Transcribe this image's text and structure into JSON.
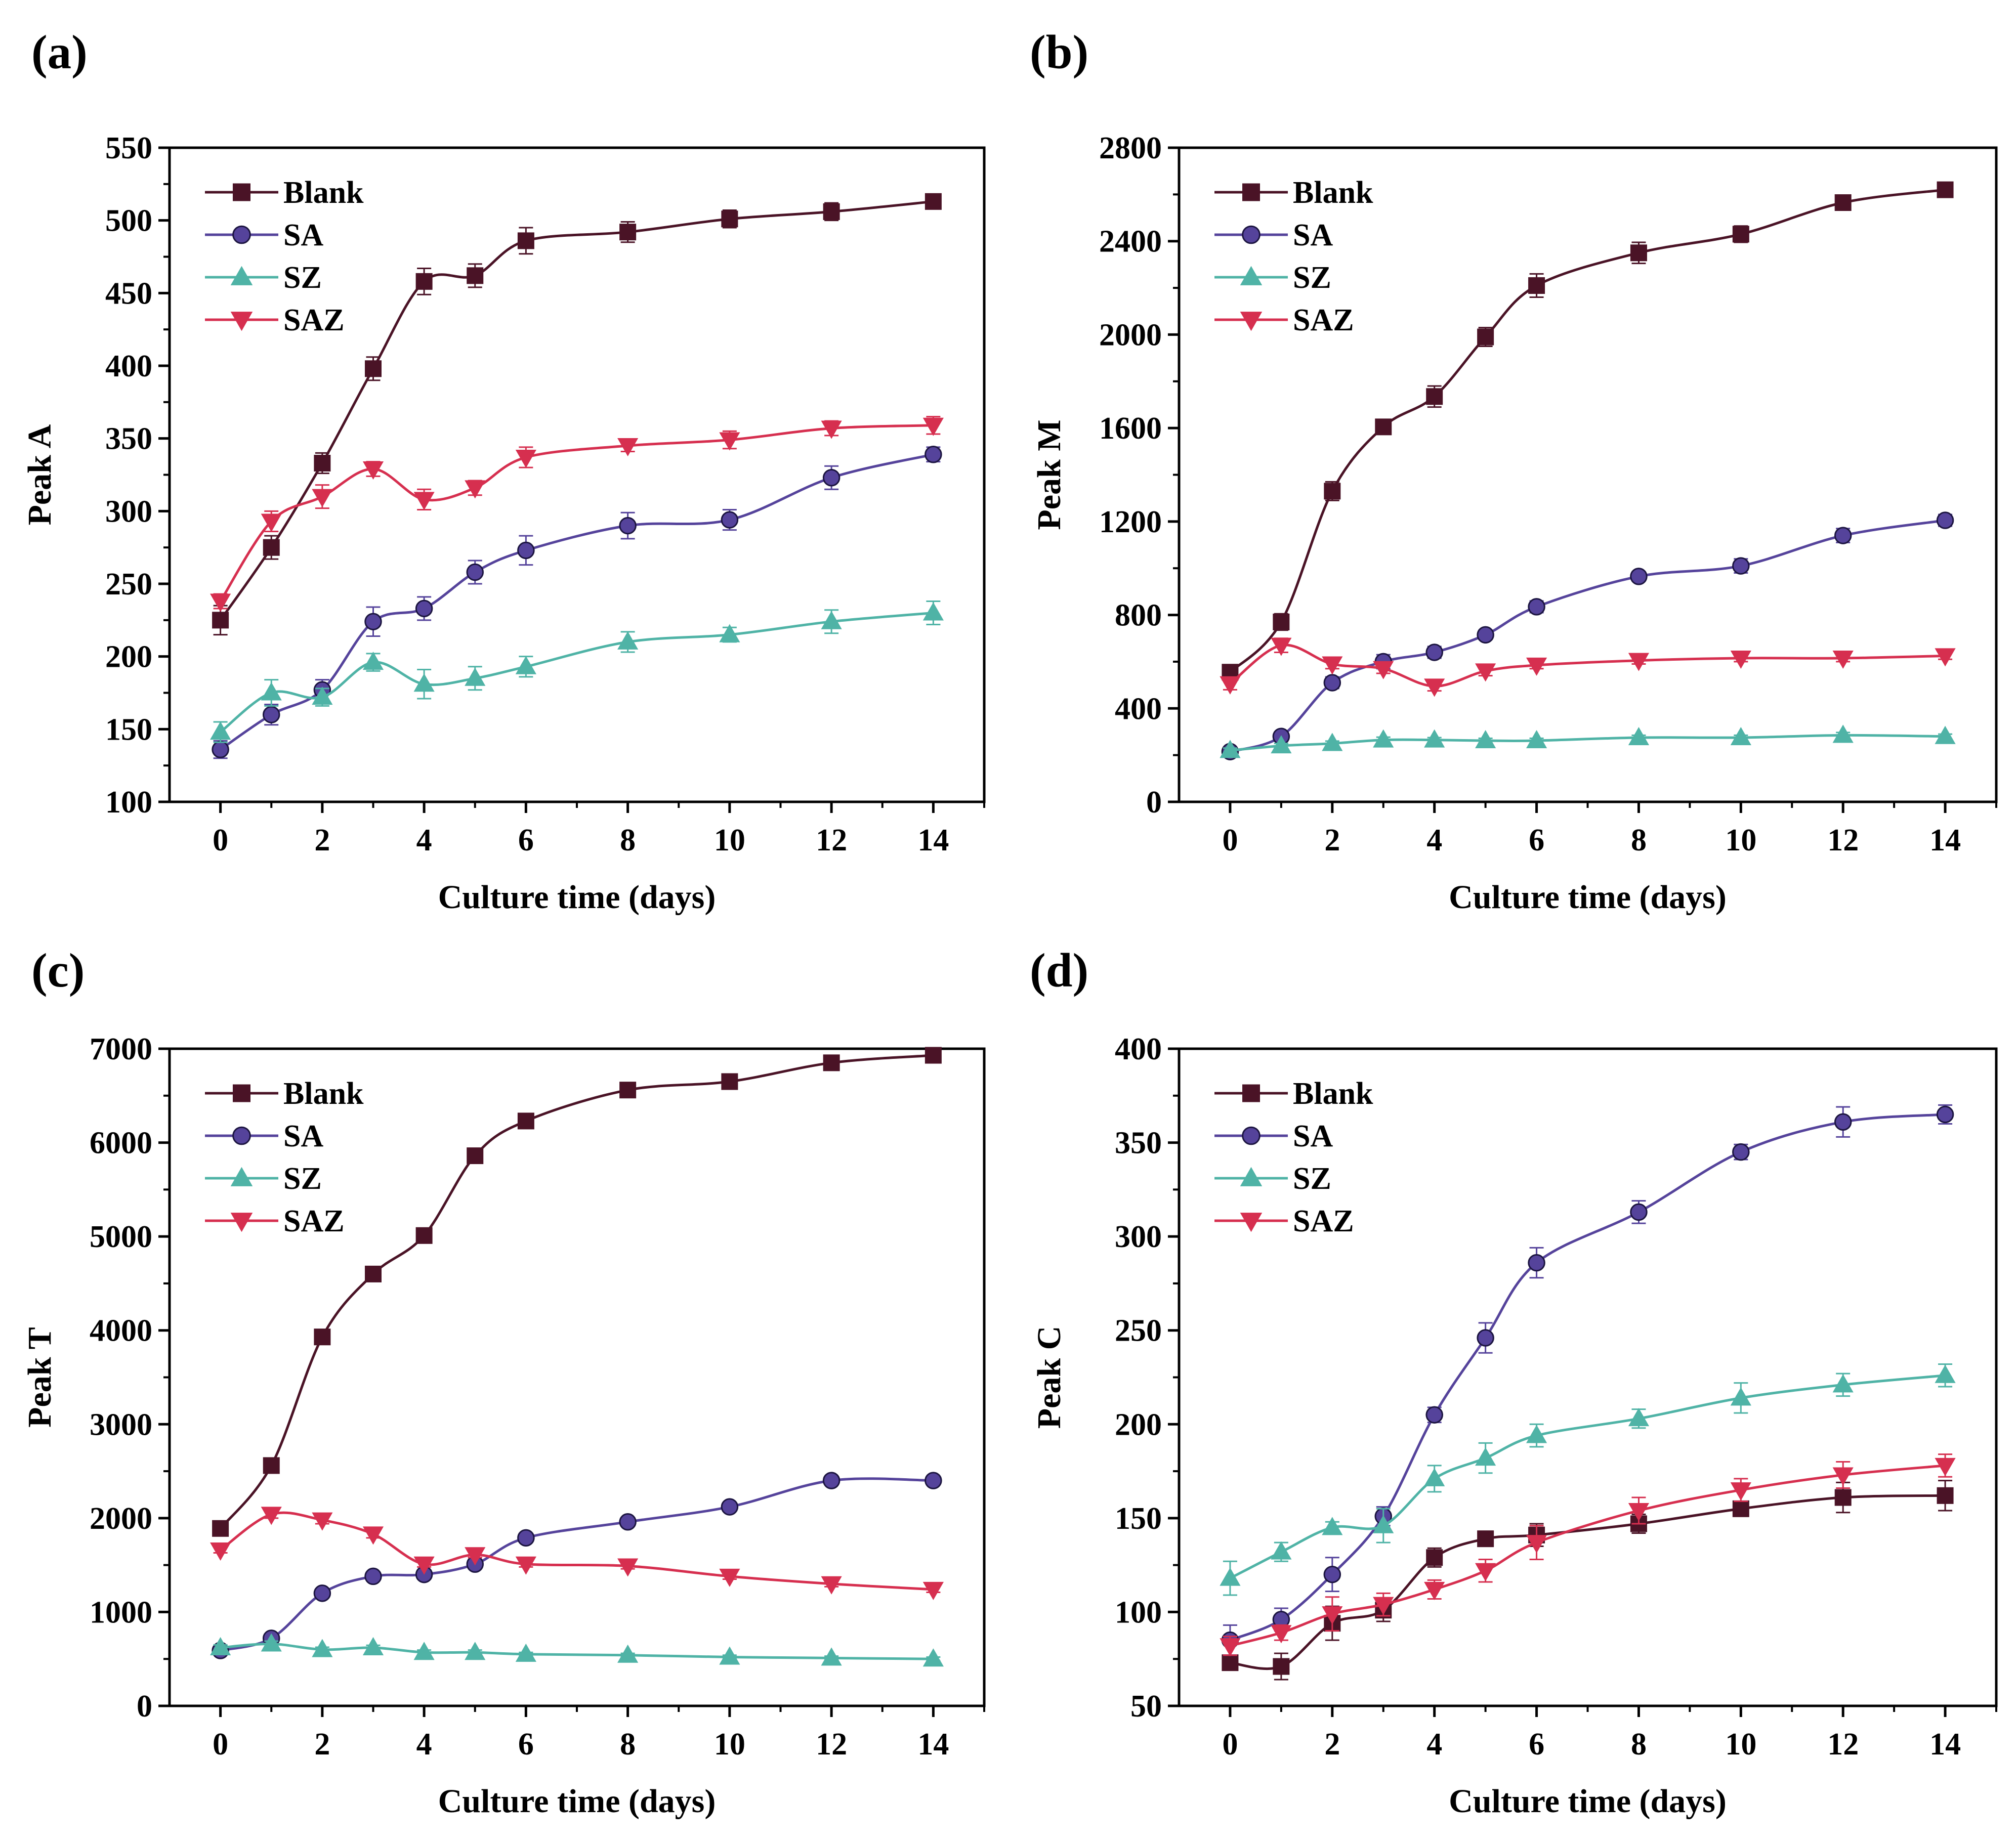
{
  "figure": {
    "panel_count": 4
  },
  "series_styles": [
    {
      "name": "Blank",
      "color": "#4a1326",
      "marker": "square"
    },
    {
      "name": "SA",
      "color": "#55439b",
      "marker": "circle"
    },
    {
      "name": "SZ",
      "color": "#4fb3a6",
      "marker": "triangle-up"
    },
    {
      "name": "SAZ",
      "color": "#d62f4f",
      "marker": "triangle-down"
    }
  ],
  "chart_data": [
    {
      "panel": "(a)",
      "type": "line",
      "xlabel": "Culture time (days)",
      "ylabel": "Peak A",
      "x": [
        0,
        1,
        2,
        3,
        4,
        5,
        6,
        8,
        10,
        12,
        14
      ],
      "xlim": [
        -1,
        15
      ],
      "xticks": [
        0,
        2,
        4,
        6,
        8,
        10,
        12,
        14
      ],
      "ylim": [
        100,
        550
      ],
      "yticks": [
        100,
        150,
        200,
        250,
        300,
        350,
        400,
        450,
        500,
        550
      ],
      "legend_position": "top-left",
      "series": [
        {
          "name": "Blank",
          "values": [
            225,
            275,
            333,
            398,
            458,
            462,
            486,
            492,
            501,
            506,
            513
          ],
          "errors": [
            10,
            8,
            7,
            8,
            9,
            8,
            9,
            7,
            6,
            6,
            4
          ]
        },
        {
          "name": "SA",
          "values": [
            136,
            160,
            177,
            224,
            233,
            258,
            273,
            290,
            294,
            323,
            339
          ],
          "errors": [
            6,
            7,
            7,
            10,
            8,
            8,
            10,
            9,
            7,
            8,
            5
          ]
        },
        {
          "name": "SZ",
          "values": [
            148,
            175,
            172,
            196,
            181,
            185,
            193,
            210,
            215,
            224,
            230
          ],
          "errors": [
            7,
            9,
            6,
            6,
            10,
            8,
            7,
            7,
            5,
            8,
            8
          ]
        },
        {
          "name": "SAZ",
          "values": [
            238,
            293,
            310,
            329,
            308,
            316,
            337,
            345,
            349,
            357,
            359
          ],
          "errors": [
            5,
            7,
            8,
            5,
            7,
            5,
            7,
            4,
            6,
            5,
            6
          ]
        }
      ]
    },
    {
      "panel": "(b)",
      "type": "line",
      "xlabel": "Culture time (days)",
      "ylabel": "Peak M",
      "x": [
        0,
        1,
        2,
        3,
        4,
        5,
        6,
        8,
        10,
        12,
        14
      ],
      "xlim": [
        -1,
        15
      ],
      "xticks": [
        0,
        2,
        4,
        6,
        8,
        10,
        12,
        14
      ],
      "ylim": [
        0,
        2800
      ],
      "yticks": [
        0,
        400,
        800,
        1200,
        1600,
        2000,
        2400,
        2800
      ],
      "legend_position": "top-left",
      "series": [
        {
          "name": "Blank",
          "values": [
            555,
            770,
            1330,
            1605,
            1735,
            1990,
            2210,
            2350,
            2430,
            2565,
            2620
          ],
          "errors": [
            30,
            35,
            40,
            25,
            45,
            40,
            50,
            45,
            35,
            25,
            30
          ]
        },
        {
          "name": "SA",
          "values": [
            215,
            280,
            510,
            600,
            640,
            715,
            835,
            965,
            1010,
            1140,
            1205
          ],
          "errors": [
            15,
            20,
            25,
            30,
            25,
            20,
            25,
            20,
            30,
            30,
            25
          ]
        },
        {
          "name": "SZ",
          "values": [
            220,
            240,
            250,
            265,
            265,
            262,
            262,
            275,
            275,
            285,
            280
          ],
          "errors": [
            10,
            10,
            10,
            12,
            10,
            10,
            10,
            10,
            10,
            12,
            10
          ]
        },
        {
          "name": "SAZ",
          "values": [
            505,
            670,
            590,
            570,
            495,
            560,
            585,
            605,
            615,
            615,
            625
          ],
          "errors": [
            25,
            30,
            20,
            20,
            20,
            20,
            15,
            15,
            15,
            15,
            15
          ]
        }
      ]
    },
    {
      "panel": "(c)",
      "type": "line",
      "xlabel": "Culture time (days)",
      "ylabel": "Peak T",
      "x": [
        0,
        1,
        2,
        3,
        4,
        5,
        6,
        8,
        10,
        12,
        14
      ],
      "xlim": [
        -1,
        15
      ],
      "xticks": [
        0,
        2,
        4,
        6,
        8,
        10,
        12,
        14
      ],
      "ylim": [
        0,
        7000
      ],
      "yticks": [
        0,
        1000,
        2000,
        3000,
        4000,
        5000,
        6000,
        7000
      ],
      "legend_position": "top-left",
      "series": [
        {
          "name": "Blank",
          "values": [
            1890,
            2560,
            3930,
            4600,
            5010,
            5860,
            6230,
            6560,
            6650,
            6850,
            6930
          ],
          "errors": [
            40,
            50,
            50,
            40,
            40,
            45,
            40,
            40,
            35,
            40,
            40
          ]
        },
        {
          "name": "SA",
          "values": [
            590,
            720,
            1200,
            1380,
            1400,
            1510,
            1790,
            1960,
            2120,
            2400,
            2400
          ],
          "errors": [
            30,
            30,
            40,
            30,
            30,
            30,
            30,
            30,
            30,
            30,
            30
          ]
        },
        {
          "name": "SZ",
          "values": [
            620,
            660,
            600,
            620,
            570,
            570,
            550,
            540,
            520,
            510,
            500
          ],
          "errors": [
            30,
            30,
            25,
            25,
            25,
            25,
            20,
            20,
            20,
            20,
            20
          ]
        },
        {
          "name": "SAZ",
          "values": [
            1660,
            2040,
            1980,
            1830,
            1510,
            1610,
            1510,
            1490,
            1380,
            1300,
            1240
          ],
          "errors": [
            30,
            40,
            40,
            40,
            30,
            30,
            30,
            30,
            30,
            30,
            30
          ]
        }
      ]
    },
    {
      "panel": "(d)",
      "type": "line",
      "xlabel": "Culture time (days)",
      "ylabel": "Peak C",
      "x": [
        0,
        1,
        2,
        3,
        4,
        5,
        6,
        8,
        10,
        12,
        14
      ],
      "xlim": [
        -1,
        15
      ],
      "xticks": [
        0,
        2,
        4,
        6,
        8,
        10,
        12,
        14
      ],
      "ylim": [
        50,
        400
      ],
      "yticks": [
        50,
        100,
        150,
        200,
        250,
        300,
        350,
        400
      ],
      "legend_position": "top-left",
      "series": [
        {
          "name": "Blank",
          "values": [
            73,
            71,
            94,
            101,
            129,
            139,
            141,
            147,
            155,
            161,
            162
          ],
          "errors": [
            4,
            7,
            9,
            6,
            5,
            4,
            6,
            5,
            4,
            8,
            8
          ]
        },
        {
          "name": "SA",
          "values": [
            85,
            96,
            120,
            151,
            205,
            246,
            286,
            313,
            345,
            361,
            365
          ],
          "errors": [
            8,
            6,
            9,
            5,
            4,
            8,
            8,
            6,
            4,
            8,
            5
          ]
        },
        {
          "name": "SZ",
          "values": [
            118,
            132,
            145,
            146,
            171,
            182,
            194,
            203,
            214,
            221,
            226
          ],
          "errors": [
            9,
            5,
            3,
            9,
            7,
            8,
            6,
            5,
            8,
            6,
            6
          ]
        },
        {
          "name": "SAZ",
          "values": [
            82,
            89,
            99,
            104,
            112,
            122,
            137,
            154,
            165,
            173,
            178
          ],
          "errors": [
            5,
            4,
            9,
            6,
            5,
            6,
            9,
            7,
            6,
            7,
            6
          ]
        }
      ]
    }
  ]
}
